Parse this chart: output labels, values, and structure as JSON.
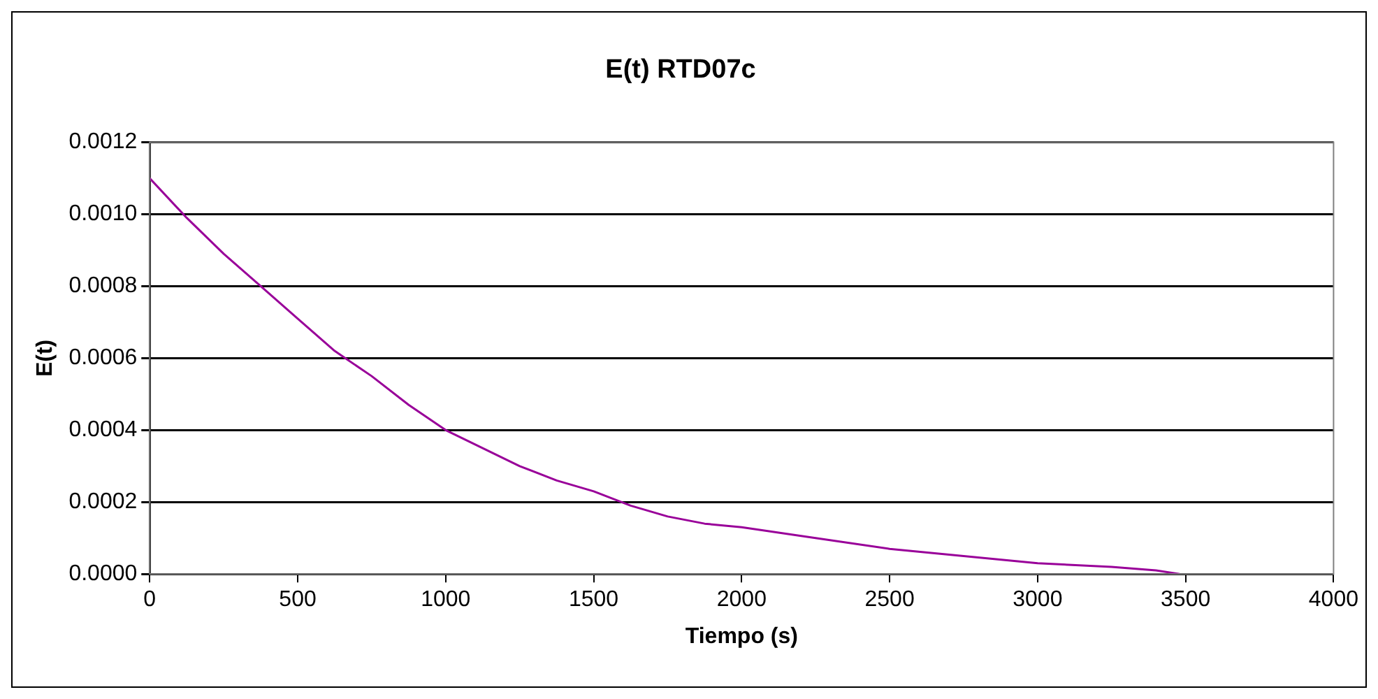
{
  "chart_data": {
    "type": "line",
    "title": "E(t) RTD07c",
    "xlabel": "Tiempo (s)",
    "ylabel": "E(t)",
    "series": [
      {
        "color": "#990099",
        "x": [
          0,
          125,
          250,
          375,
          500,
          625,
          750,
          875,
          1000,
          1125,
          1250,
          1375,
          1500,
          1625,
          1750,
          1875,
          2000,
          2250,
          2500,
          2750,
          3000,
          3250,
          3400,
          3480
        ],
        "values": [
          0.0011,
          0.00099,
          0.00089,
          0.0008,
          0.00071,
          0.00062,
          0.00055,
          0.00047,
          0.0004,
          0.00035,
          0.0003,
          0.00026,
          0.00023,
          0.00019,
          0.00016,
          0.00014,
          0.00013,
          0.0001,
          7e-05,
          5e-05,
          3e-05,
          2e-05,
          1e-05,
          0.0
        ]
      }
    ],
    "xlim": [
      0,
      4000
    ],
    "xticks": [
      0,
      500,
      1000,
      1500,
      2000,
      2500,
      3000,
      3500,
      4000
    ],
    "ylim": [
      0,
      0.0012
    ],
    "yticks": [
      {
        "value": 0,
        "label": "0.0000"
      },
      {
        "value": 0.0002,
        "label": "0.0002"
      },
      {
        "value": 0.0004,
        "label": "0.0004"
      },
      {
        "value": 0.0006,
        "label": "0.0006"
      },
      {
        "value": 0.0008,
        "label": "0.0008"
      },
      {
        "value": 0.001,
        "label": "0.0010"
      },
      {
        "value": 0.0012,
        "label": "0.0012"
      }
    ],
    "grid": "y",
    "legend": false,
    "marker": "none",
    "line_style": "solid"
  }
}
